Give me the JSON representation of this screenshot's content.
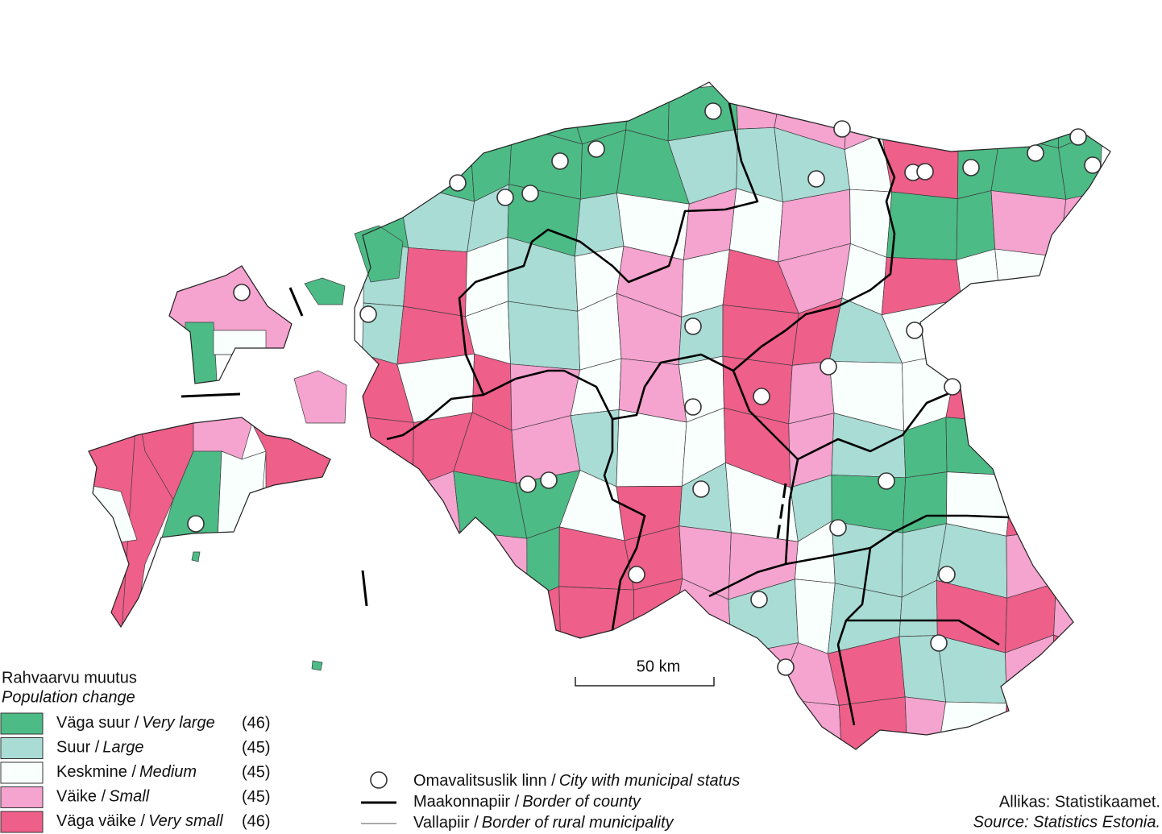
{
  "legend": {
    "title": "Rahvaarvu muutus",
    "subtitle": "Population change",
    "items": [
      {
        "label": "Väga suur /",
        "label_en": "Very large",
        "count": "(46)",
        "color": "#4dbb86"
      },
      {
        "label": "Suur /",
        "label_en": "Large",
        "count": "(45)",
        "color": "#a9dcd5"
      },
      {
        "label": "Keskmine /",
        "label_en": "Medium",
        "count": "(45)",
        "color": "#f8fffd"
      },
      {
        "label": "Väike /",
        "label_en": "Small",
        "count": "(45)",
        "color": "#f5a3cf"
      },
      {
        "label": "Väga väike /",
        "label_en": "Very small",
        "count": "(46)",
        "color": "#ee5f8a"
      }
    ]
  },
  "symbols": [
    {
      "label": "Omavalitsuslik linn /",
      "label_en": "City with municipal status"
    },
    {
      "label": "Maakonnapiir /",
      "label_en": "Border of county"
    },
    {
      "label": "Vallapiir /",
      "label_en": "Border of rural municipality"
    }
  ],
  "scale_bar": "50 km",
  "source": {
    "et": "Allikas: Statistikaamet.",
    "en": "Source: Statistics Estonia."
  }
}
